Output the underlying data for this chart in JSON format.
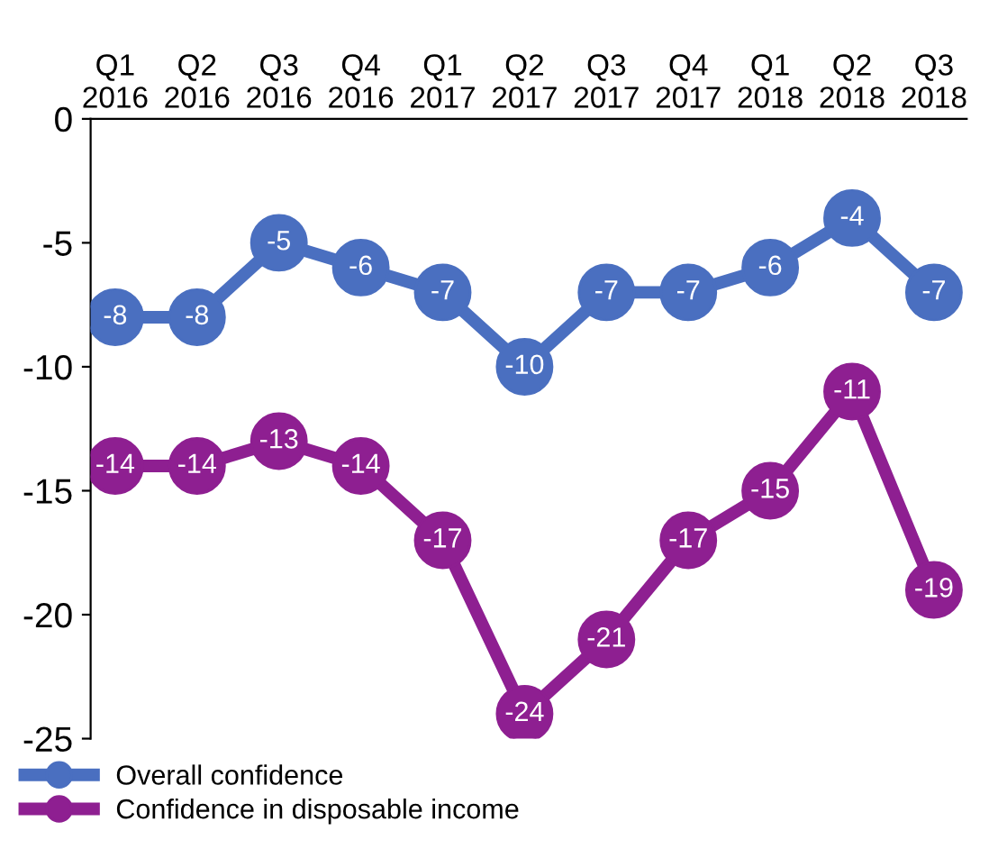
{
  "chart_data": {
    "type": "line",
    "categories": [
      "Q1\n2016",
      "Q2\n2016",
      "Q3\n2016",
      "Q4\n2016",
      "Q1\n2017",
      "Q2\n2017",
      "Q3\n2017",
      "Q4\n2017",
      "Q1\n2018",
      "Q2\n2018",
      "Q3\n2018"
    ],
    "series": [
      {
        "name": "Overall confidence",
        "color": "#4a6fc0",
        "values": [
          -8,
          -8,
          -5,
          -6,
          -7,
          -10,
          -7,
          -7,
          -6,
          -4,
          -7
        ]
      },
      {
        "name": "Confidence in disposable income",
        "color": "#8e1f91",
        "values": [
          -14,
          -14,
          -13,
          -14,
          -17,
          -24,
          -21,
          -17,
          -15,
          -11,
          -19
        ]
      }
    ],
    "ylim": [
      -25,
      0
    ],
    "yticks": [
      0,
      -5,
      -10,
      -15,
      -20,
      -25
    ],
    "data_labels": true,
    "marker": "circle",
    "line_style": "solid",
    "grid": false,
    "legend": "bottom left"
  }
}
